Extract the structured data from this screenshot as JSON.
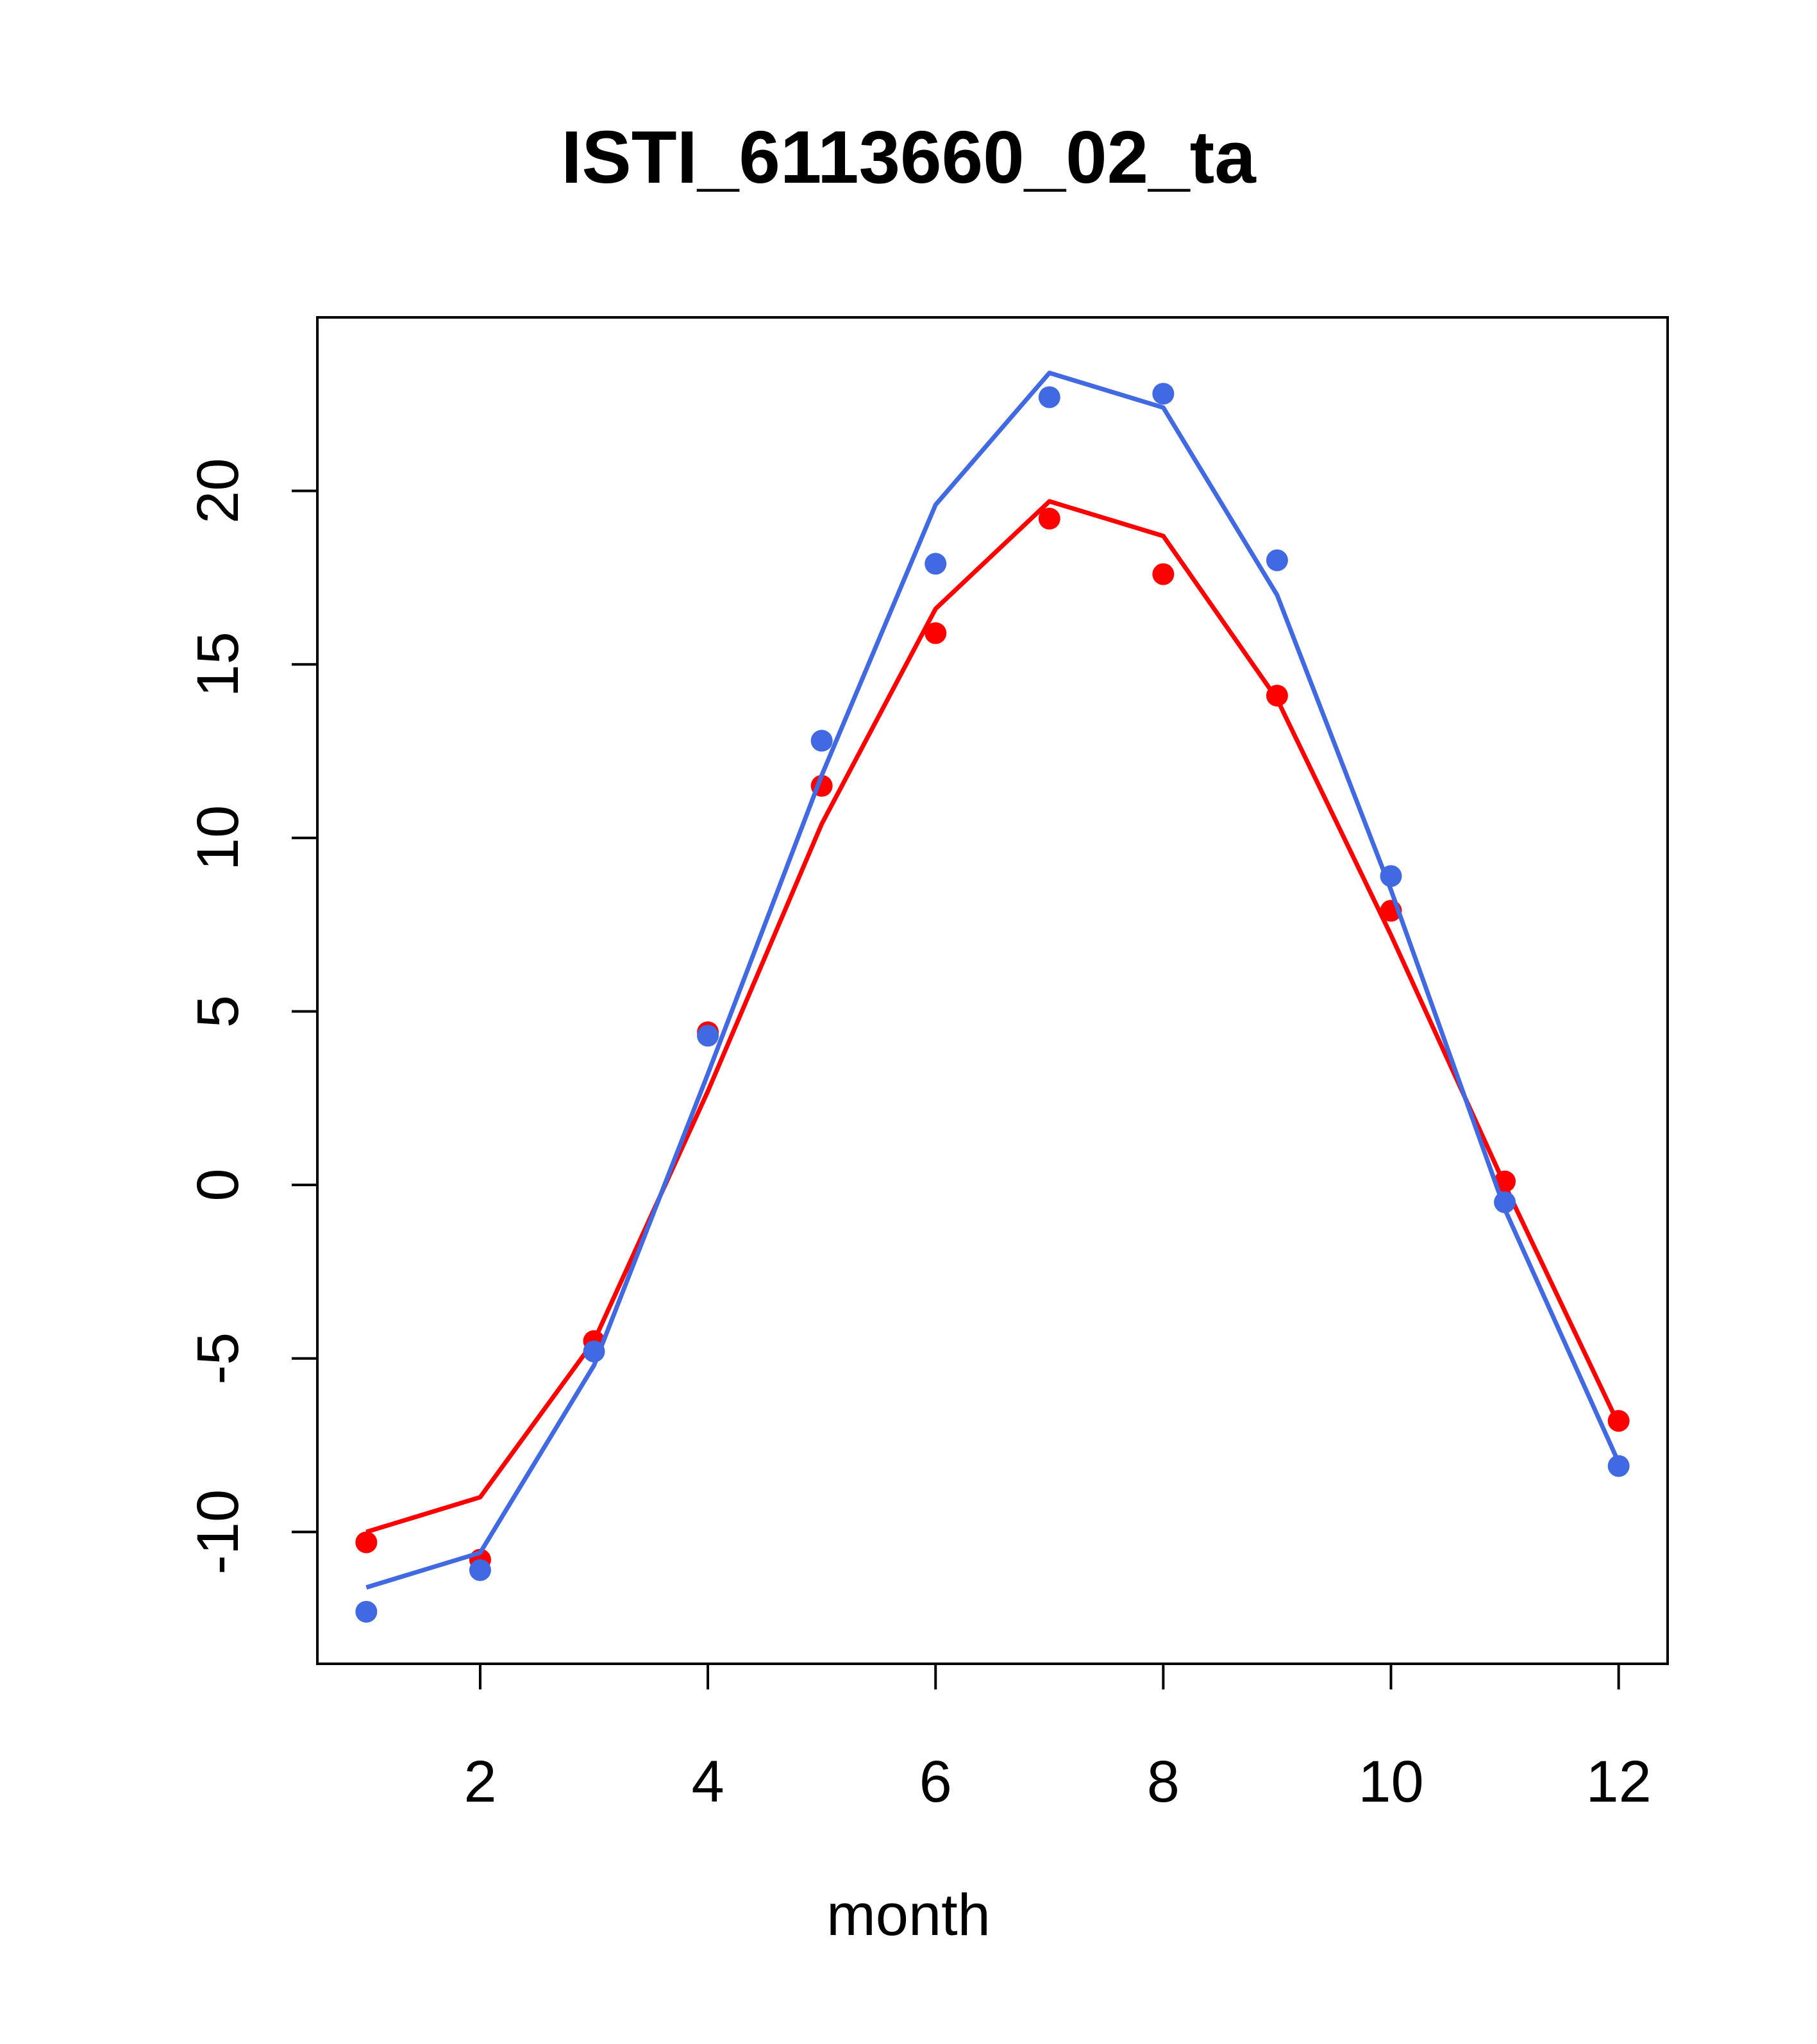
{
  "chart_data": {
    "type": "line",
    "title": "ISTI_6113660_02_ta",
    "xlabel": "month",
    "ylabel": "",
    "xlim": [
      0.57,
      12.43
    ],
    "ylim": [
      -13.8,
      25.0
    ],
    "xticks": [
      2,
      4,
      6,
      8,
      10,
      12
    ],
    "yticks": [
      -10,
      -5,
      0,
      5,
      10,
      15,
      20
    ],
    "grid": false,
    "x": [
      1,
      2,
      3,
      4,
      5,
      6,
      7,
      8,
      9,
      10,
      11,
      12
    ],
    "series": [
      {
        "color": "#ff0000",
        "points": [
          -10.3,
          -10.8,
          -4.5,
          4.4,
          11.5,
          15.9,
          19.2,
          17.6,
          14.1,
          7.9,
          0.1,
          -6.8
        ],
        "line": [
          -10.0,
          -9.0,
          -4.5,
          2.7,
          10.4,
          16.6,
          19.7,
          18.7,
          14.0,
          7.2,
          0.0,
          -6.9
        ]
      },
      {
        "color": "#4169e1",
        "points": [
          -12.3,
          -11.1,
          -4.8,
          4.3,
          12.8,
          17.9,
          22.7,
          22.8,
          18.0,
          8.9,
          -0.5,
          -8.1
        ],
        "line": [
          -11.6,
          -10.6,
          -5.2,
          3.2,
          11.8,
          19.6,
          23.4,
          22.4,
          17.0,
          8.5,
          -0.7,
          -8.0
        ]
      }
    ]
  }
}
